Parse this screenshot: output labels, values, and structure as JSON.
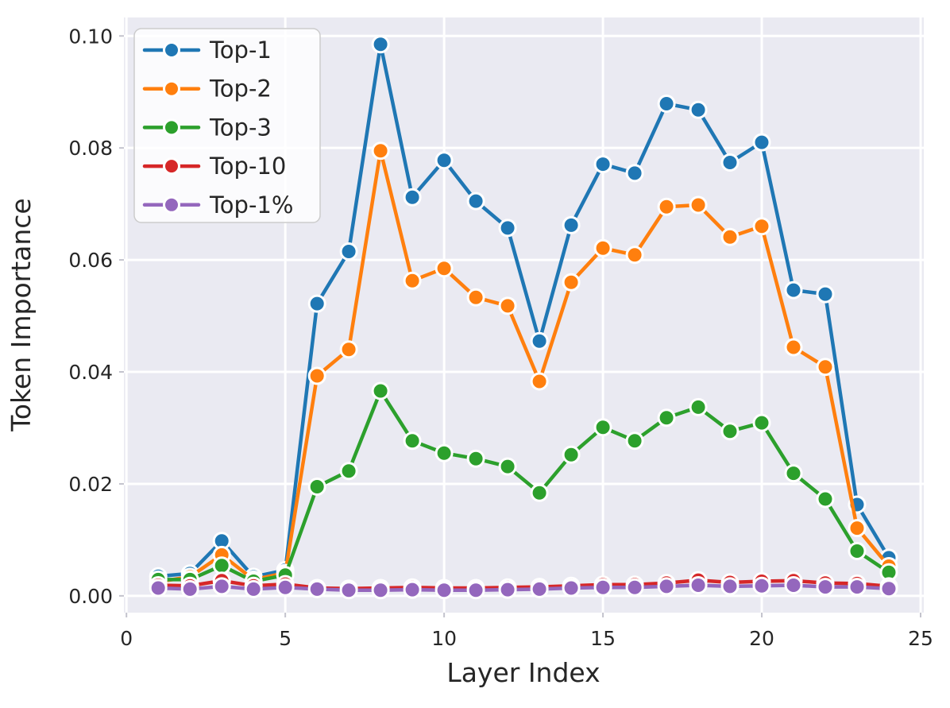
{
  "chart_data": {
    "type": "line",
    "title": "",
    "xlabel": "Layer Index",
    "ylabel": "Token Importance",
    "x": [
      1,
      2,
      3,
      4,
      5,
      6,
      7,
      8,
      9,
      10,
      11,
      12,
      13,
      14,
      15,
      16,
      17,
      18,
      19,
      20,
      21,
      22,
      23,
      24
    ],
    "series": [
      {
        "name": "Top-1",
        "color": "#1f77b4",
        "values": [
          0.0035,
          0.004,
          0.0098,
          0.0034,
          0.0046,
          0.0522,
          0.0615,
          0.0985,
          0.0712,
          0.0778,
          0.0705,
          0.0657,
          0.0455,
          0.0662,
          0.0771,
          0.0755,
          0.0879,
          0.0868,
          0.0774,
          0.081,
          0.0546,
          0.0539,
          0.0163,
          0.0068
        ]
      },
      {
        "name": "Top-2",
        "color": "#ff7f0e",
        "values": [
          0.0025,
          0.0034,
          0.0073,
          0.0029,
          0.0041,
          0.0393,
          0.044,
          0.0795,
          0.0563,
          0.0585,
          0.0533,
          0.0518,
          0.0383,
          0.056,
          0.0621,
          0.0609,
          0.0695,
          0.0698,
          0.0641,
          0.066,
          0.0444,
          0.0409,
          0.0121,
          0.0053
        ]
      },
      {
        "name": "Top-3",
        "color": "#2ca02c",
        "values": [
          0.0029,
          0.0029,
          0.0054,
          0.0026,
          0.0037,
          0.0195,
          0.0223,
          0.0366,
          0.0277,
          0.0255,
          0.0245,
          0.0231,
          0.0184,
          0.0252,
          0.0301,
          0.0277,
          0.0318,
          0.0337,
          0.0294,
          0.0309,
          0.0219,
          0.0173,
          0.008,
          0.0042
        ]
      },
      {
        "name": "Top-10",
        "color": "#d62728",
        "values": [
          0.0019,
          0.0018,
          0.0027,
          0.0018,
          0.0021,
          0.0014,
          0.0013,
          0.0014,
          0.0015,
          0.0014,
          0.0014,
          0.0015,
          0.0016,
          0.0018,
          0.002,
          0.002,
          0.0023,
          0.0028,
          0.0024,
          0.0026,
          0.0027,
          0.0023,
          0.0022,
          0.0017
        ]
      },
      {
        "name": "Top-1%",
        "color": "#9467bd",
        "values": [
          0.0014,
          0.0012,
          0.0017,
          0.0012,
          0.0015,
          0.0012,
          0.001,
          0.001,
          0.0011,
          0.001,
          0.001,
          0.0011,
          0.0012,
          0.0014,
          0.0015,
          0.0015,
          0.0017,
          0.0019,
          0.0017,
          0.0018,
          0.0019,
          0.0016,
          0.0016,
          0.0013
        ]
      }
    ],
    "x_ticks": {
      "values": [
        0,
        5,
        10,
        15,
        20,
        25
      ],
      "labels": [
        "0",
        "5",
        "10",
        "15",
        "20",
        "25"
      ]
    },
    "y_ticks": {
      "values": [
        0,
        0.02,
        0.04,
        0.06,
        0.08,
        0.1
      ],
      "labels": [
        "0.00",
        "0.02",
        "0.04",
        "0.06",
        "0.08",
        "0.10"
      ]
    },
    "xlim": [
      -0.08,
      25.1
    ],
    "ylim": [
      -0.003,
      0.1033
    ],
    "grid": true,
    "legend": {
      "position": "upper left",
      "entries": [
        "Top-1",
        "Top-2",
        "Top-3",
        "Top-10",
        "Top-1%"
      ]
    },
    "style": {
      "plot_background": "#eaeaf2",
      "grid_color": "#ffffff",
      "tick_mark_color": "#c3c3cd",
      "text_color": "#262626",
      "marker_edge_color": "#ffffff",
      "legend_face_color": "#ffffff",
      "legend_edge_color": "#cccccc"
    }
  }
}
